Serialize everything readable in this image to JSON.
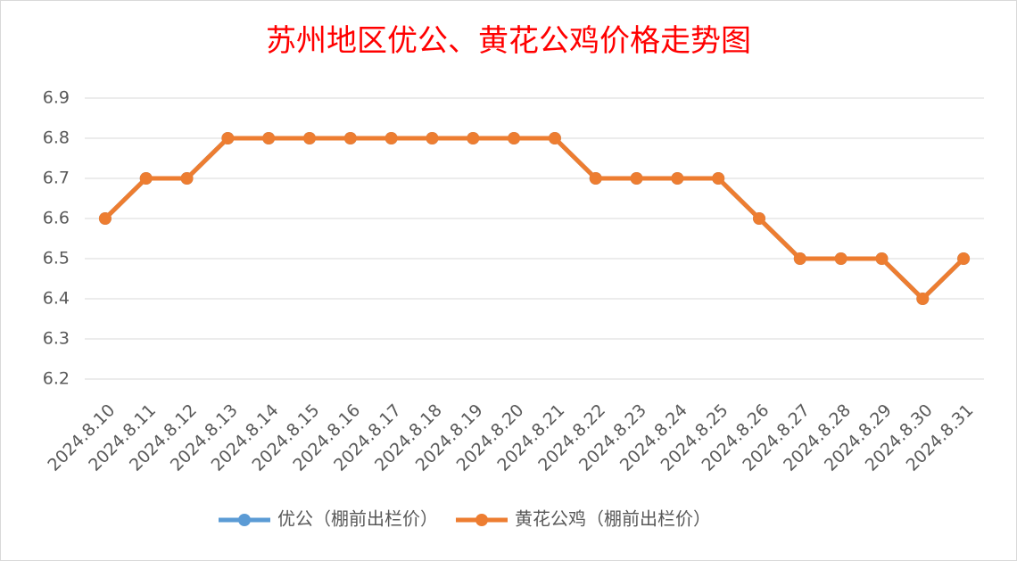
{
  "chart_data": {
    "type": "line",
    "title": "苏州地区优公、黄花公鸡价格走势图",
    "categories": [
      "2024.8.10",
      "2024.8.11",
      "2024.8.12",
      "2024.8.13",
      "2024.8.14",
      "2024.8.15",
      "2024.8.16",
      "2024.8.17",
      "2024.8.18",
      "2024.8.19",
      "2024.8.20",
      "2024.8.21",
      "2024.8.22",
      "2024.8.23",
      "2024.8.24",
      "2024.8.25",
      "2024.8.26",
      "2024.8.27",
      "2024.8.28",
      "2024.8.29",
      "2024.8.30",
      "2024.8.31"
    ],
    "series": [
      {
        "name": "优公（棚前出栏价）",
        "color": "#5b9bd5",
        "values": [
          6.6,
          6.7,
          6.7,
          6.8,
          6.8,
          6.8,
          6.8,
          6.8,
          6.8,
          6.8,
          6.8,
          6.8,
          6.7,
          6.7,
          6.7,
          6.7,
          6.6,
          6.5,
          6.5,
          6.5,
          6.4,
          6.5
        ]
      },
      {
        "name": "黄花公鸡（棚前出栏价）",
        "color": "#ed7d31",
        "values": [
          6.6,
          6.7,
          6.7,
          6.8,
          6.8,
          6.8,
          6.8,
          6.8,
          6.8,
          6.8,
          6.8,
          6.8,
          6.7,
          6.7,
          6.7,
          6.7,
          6.6,
          6.5,
          6.5,
          6.5,
          6.4,
          6.5
        ]
      }
    ],
    "ylim": [
      6.2,
      6.9
    ],
    "yticks": [
      6.2,
      6.3,
      6.4,
      6.5,
      6.6,
      6.7,
      6.8,
      6.9
    ],
    "grid": true,
    "legend": "bottom"
  }
}
